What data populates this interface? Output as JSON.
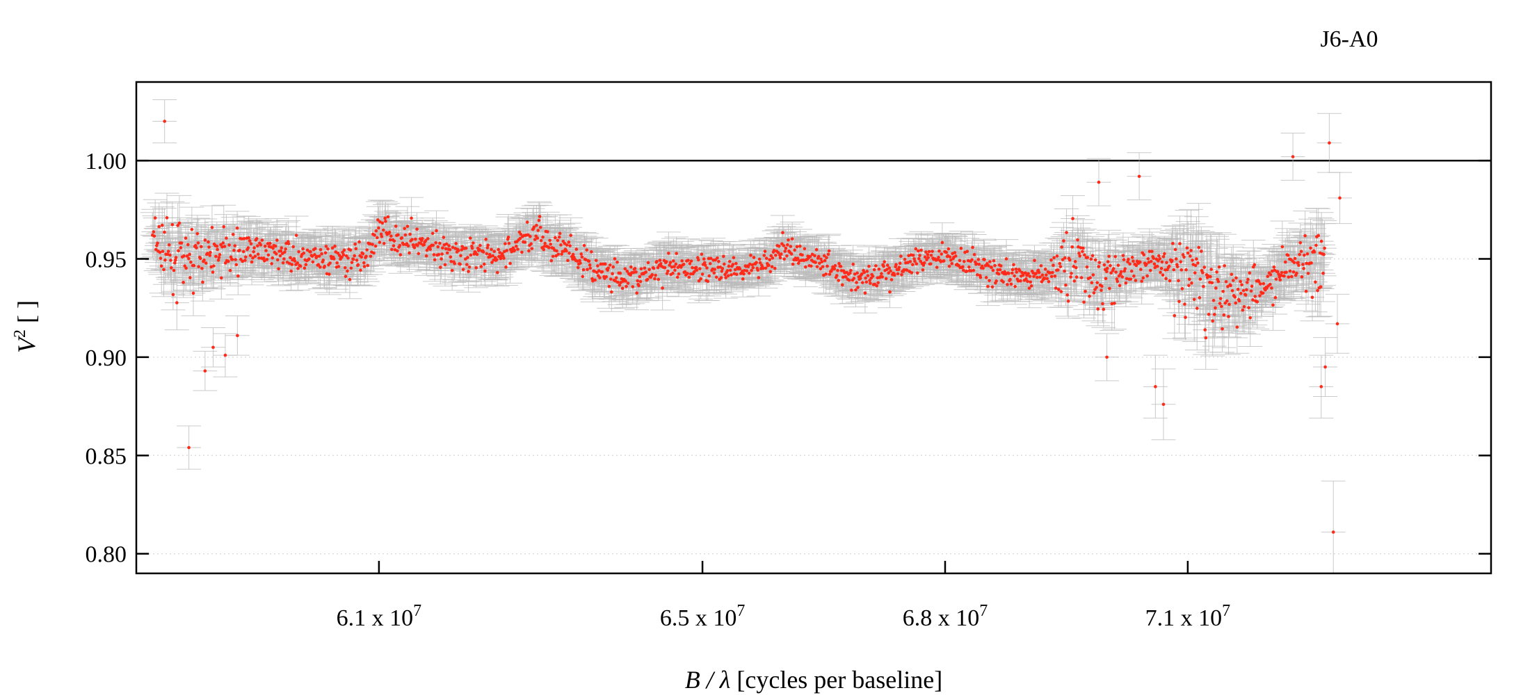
{
  "chart_data": {
    "type": "scatter",
    "title": "J6-A0",
    "xlabel_main": "B / λ",
    "xlabel_units": " [cycles per baseline]",
    "ylabel_main": "V",
    "ylabel_sup": "2",
    "ylabel_units": " [ ]",
    "xlim": [
      58000000,
      74750000
    ],
    "ylim": [
      0.79,
      1.04
    ],
    "xticks": [
      {
        "value": 61000000,
        "mantissa": "6.1 x 10",
        "exp": "7"
      },
      {
        "value": 65000000,
        "mantissa": "6.5 x 10",
        "exp": "7"
      },
      {
        "value": 68000000,
        "mantissa": "6.8 x 10",
        "exp": "7"
      },
      {
        "value": 71000000,
        "mantissa": "7.1 x 10",
        "exp": "7"
      }
    ],
    "yticks": [
      {
        "value": 0.8,
        "label": "0.80"
      },
      {
        "value": 0.85,
        "label": "0.85"
      },
      {
        "value": 0.9,
        "label": "0.90"
      },
      {
        "value": 0.95,
        "label": "0.95"
      },
      {
        "value": 1.0,
        "label": "1.00"
      }
    ],
    "reference_line": 1.0,
    "grid": "horizontal dotted",
    "colors": {
      "points": "#ff2a1a",
      "errorbars": "#b8b8b8",
      "axes": "#000000",
      "grid": "#dddddd"
    },
    "series": [
      {
        "x": [
          58200000,
          58300000,
          58500000,
          59000000,
          59300000,
          59500000,
          59800000,
          60200000,
          60500000,
          60800000,
          61000000,
          61500000,
          61900000,
          62500000,
          62900000,
          63300000,
          63700000,
          64100000,
          64600000,
          65000000,
          65500000,
          66000000,
          66400000,
          66900000,
          67300000,
          67600000,
          68000000,
          68400000,
          68800000,
          69300000,
          69600000,
          69900000,
          70300000,
          70700000,
          70900000,
          71200000,
          71600000,
          72000000,
          72400000,
          72700000
        ],
        "y": [
          0.962,
          0.958,
          0.95,
          0.952,
          0.956,
          0.954,
          0.953,
          0.949,
          0.95,
          0.951,
          0.962,
          0.958,
          0.953,
          0.951,
          0.964,
          0.954,
          0.944,
          0.94,
          0.945,
          0.946,
          0.944,
          0.954,
          0.95,
          0.94,
          0.941,
          0.949,
          0.953,
          0.946,
          0.941,
          0.942,
          0.95,
          0.935,
          0.946,
          0.949,
          0.944,
          0.938,
          0.934,
          0.938,
          0.948,
          0.945
        ],
        "scatter": [
          0.009,
          0.018,
          0.015,
          0.01,
          0.009,
          0.008,
          0.007,
          0.007,
          0.007,
          0.007,
          0.008,
          0.007,
          0.006,
          0.007,
          0.008,
          0.007,
          0.008,
          0.007,
          0.007,
          0.006,
          0.006,
          0.007,
          0.006,
          0.006,
          0.007,
          0.006,
          0.005,
          0.007,
          0.006,
          0.007,
          0.017,
          0.019,
          0.007,
          0.007,
          0.018,
          0.02,
          0.014,
          0.008,
          0.012,
          0.022
        ],
        "yerr": [
          0.01,
          0.011,
          0.011,
          0.01,
          0.009,
          0.009,
          0.009,
          0.009,
          0.009,
          0.009,
          0.009,
          0.009,
          0.009,
          0.009,
          0.009,
          0.009,
          0.009,
          0.009,
          0.009,
          0.009,
          0.008,
          0.008,
          0.008,
          0.008,
          0.008,
          0.008,
          0.008,
          0.008,
          0.008,
          0.009,
          0.011,
          0.012,
          0.009,
          0.009,
          0.015,
          0.018,
          0.014,
          0.01,
          0.011,
          0.015
        ],
        "xerr": 150000
      }
    ],
    "outliers": [
      {
        "x": 58350000,
        "y": 1.02,
        "yerr": 0.011
      },
      {
        "x": 58650000,
        "y": 0.854,
        "yerr": 0.011
      },
      {
        "x": 58850000,
        "y": 0.893,
        "yerr": 0.01
      },
      {
        "x": 58950000,
        "y": 0.905,
        "yerr": 0.01
      },
      {
        "x": 59100000,
        "y": 0.901,
        "yerr": 0.011
      },
      {
        "x": 59250000,
        "y": 0.911,
        "yerr": 0.01
      },
      {
        "x": 72300000,
        "y": 1.002,
        "yerr": 0.012
      },
      {
        "x": 72750000,
        "y": 1.009,
        "yerr": 0.015
      },
      {
        "x": 72800000,
        "y": 0.811,
        "yerr": 0.026
      },
      {
        "x": 72650000,
        "y": 0.885,
        "yerr": 0.016
      },
      {
        "x": 72700000,
        "y": 0.895,
        "yerr": 0.015
      },
      {
        "x": 72850000,
        "y": 0.917,
        "yerr": 0.015
      },
      {
        "x": 72880000,
        "y": 0.981,
        "yerr": 0.013
      },
      {
        "x": 70700000,
        "y": 0.876,
        "yerr": 0.018
      },
      {
        "x": 70600000,
        "y": 0.885,
        "yerr": 0.016
      },
      {
        "x": 69900000,
        "y": 0.989,
        "yerr": 0.012
      },
      {
        "x": 70000000,
        "y": 0.9,
        "yerr": 0.012
      },
      {
        "x": 70400000,
        "y": 0.992,
        "yerr": 0.012
      }
    ]
  }
}
